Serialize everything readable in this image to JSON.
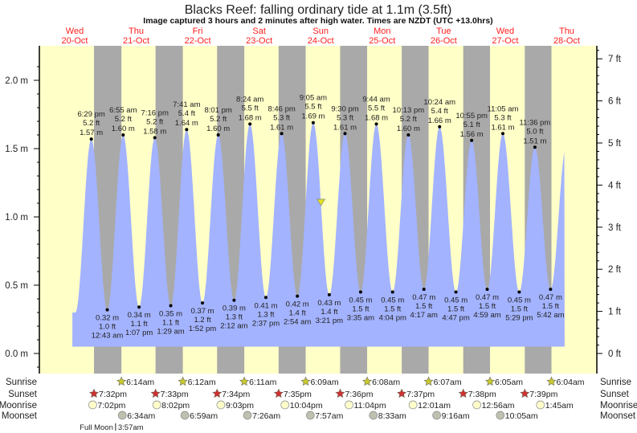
{
  "title": "Blacks Reef: falling  ordinary tide at 1.1m (3.5ft)",
  "subtitle": "Image captured 3 hours and 2 minutes after high water. Times are NZDT (UTC +13.0hrs)",
  "colors": {
    "day": "#ffffc8",
    "night": "#a9a9a9",
    "water": "#a3b3ff",
    "day_label": "#ff2020",
    "sunrise_icon": "#c8c832",
    "sunset_icon": "#d03030",
    "moonrise_icon": "#ffffcc",
    "moonset_icon": "#c0c0b0",
    "current_marker": "#e0e020"
  },
  "chart_data": {
    "type": "area",
    "title": "Blacks Reef: falling  ordinary tide at 1.1m (3.5ft)",
    "ylabel_left_unit": "m",
    "ylabel_right_unit": "ft",
    "ylim_m": [
      -0.05,
      2.25
    ],
    "left_ticks": [
      "0.0 m",
      "0.5 m",
      "1.0 m",
      "1.5 m",
      "2.0 m"
    ],
    "left_tick_values": [
      0.0,
      0.5,
      1.0,
      1.5,
      2.0
    ],
    "right_ticks": [
      "0 ft",
      "1 ft",
      "2 ft",
      "3 ft",
      "4 ft",
      "5 ft",
      "6 ft",
      "7 ft"
    ],
    "right_tick_values": [
      0,
      1,
      2,
      3,
      4,
      5,
      6,
      7
    ],
    "days": [
      {
        "weekday": "Wed",
        "date": "20-Oct"
      },
      {
        "weekday": "Thu",
        "date": "21-Oct"
      },
      {
        "weekday": "Fri",
        "date": "22-Oct"
      },
      {
        "weekday": "Sat",
        "date": "23-Oct"
      },
      {
        "weekday": "Sun",
        "date": "24-Oct"
      },
      {
        "weekday": "Mon",
        "date": "25-Oct"
      },
      {
        "weekday": "Tue",
        "date": "26-Oct"
      },
      {
        "weekday": "Wed",
        "date": "27-Oct"
      },
      {
        "weekday": "Thu",
        "date": "28-Oct"
      }
    ],
    "extremes": [
      {
        "type": "high",
        "day": 20,
        "time": "6:29 pm",
        "m": "1.57 m",
        "ft": "5.2 ft",
        "value": 1.57
      },
      {
        "type": "low",
        "day": 21,
        "time": "12:43 am",
        "m": "0.32 m",
        "ft": "1.0 ft",
        "value": 0.32
      },
      {
        "type": "high",
        "day": 21,
        "time": "6:55 am",
        "m": "1.60 m",
        "ft": "5.2 ft",
        "value": 1.6
      },
      {
        "type": "low",
        "day": 21,
        "time": "1:07 pm",
        "m": "0.34 m",
        "ft": "1.1 ft",
        "value": 0.34
      },
      {
        "type": "high",
        "day": 21,
        "time": "7:16 pm",
        "m": "1.58 m",
        "ft": "5.2 ft",
        "value": 1.58
      },
      {
        "type": "low",
        "day": 22,
        "time": "1:29 am",
        "m": "0.35 m",
        "ft": "1.1 ft",
        "value": 0.35
      },
      {
        "type": "high",
        "day": 22,
        "time": "7:41 am",
        "m": "1.64 m",
        "ft": "5.4 ft",
        "value": 1.64
      },
      {
        "type": "low",
        "day": 22,
        "time": "1:52 pm",
        "m": "0.37 m",
        "ft": "1.2 ft",
        "value": 0.37
      },
      {
        "type": "high",
        "day": 22,
        "time": "8:01 pm",
        "m": "1.60 m",
        "ft": "5.2 ft",
        "value": 1.6
      },
      {
        "type": "low",
        "day": 23,
        "time": "2:12 am",
        "m": "0.39 m",
        "ft": "1.3 ft",
        "value": 0.39
      },
      {
        "type": "high",
        "day": 23,
        "time": "8:24 am",
        "m": "1.68 m",
        "ft": "5.5 ft",
        "value": 1.68
      },
      {
        "type": "low",
        "day": 23,
        "time": "2:37 pm",
        "m": "0.41 m",
        "ft": "1.3 ft",
        "value": 0.41
      },
      {
        "type": "high",
        "day": 23,
        "time": "8:46 pm",
        "m": "1.61 m",
        "ft": "5.3 ft",
        "value": 1.61
      },
      {
        "type": "low",
        "day": 24,
        "time": "2:54 am",
        "m": "0.42 m",
        "ft": "1.4 ft",
        "value": 0.42
      },
      {
        "type": "high",
        "day": 24,
        "time": "9:05 am",
        "m": "1.69 m",
        "ft": "5.5 ft",
        "value": 1.69
      },
      {
        "type": "low",
        "day": 24,
        "time": "3:21 pm",
        "m": "0.43 m",
        "ft": "1.4 ft",
        "value": 0.43
      },
      {
        "type": "high",
        "day": 24,
        "time": "9:30 pm",
        "m": "1.61 m",
        "ft": "5.3 ft",
        "value": 1.61
      },
      {
        "type": "low",
        "day": 25,
        "time": "3:35 am",
        "m": "0.45 m",
        "ft": "1.5 ft",
        "value": 0.45
      },
      {
        "type": "high",
        "day": 25,
        "time": "9:44 am",
        "m": "1.68 m",
        "ft": "5.5 ft",
        "value": 1.68
      },
      {
        "type": "low",
        "day": 25,
        "time": "4:04 pm",
        "m": "0.45 m",
        "ft": "1.5 ft",
        "value": 0.45
      },
      {
        "type": "high",
        "day": 25,
        "time": "10:13 pm",
        "m": "1.60 m",
        "ft": "5.2 ft",
        "value": 1.6
      },
      {
        "type": "low",
        "day": 26,
        "time": "4:17 am",
        "m": "0.47 m",
        "ft": "1.5 ft",
        "value": 0.47
      },
      {
        "type": "high",
        "day": 26,
        "time": "10:24 am",
        "m": "1.66 m",
        "ft": "5.4 ft",
        "value": 1.66
      },
      {
        "type": "low",
        "day": 26,
        "time": "4:47 pm",
        "m": "0.45 m",
        "ft": "1.5 ft",
        "value": 0.45
      },
      {
        "type": "high",
        "day": 26,
        "time": "10:55 pm",
        "m": "1.56 m",
        "ft": "5.1 ft",
        "value": 1.56
      },
      {
        "type": "low",
        "day": 27,
        "time": "4:59 am",
        "m": "0.47 m",
        "ft": "1.5 ft",
        "value": 0.47
      },
      {
        "type": "high",
        "day": 27,
        "time": "11:05 am",
        "m": "1.61 m",
        "ft": "5.3 ft",
        "value": 1.61
      },
      {
        "type": "low",
        "day": 27,
        "time": "5:29 pm",
        "m": "0.45 m",
        "ft": "1.5 ft",
        "value": 0.45
      },
      {
        "type": "high",
        "day": 27,
        "time": "11:36 pm",
        "m": "1.51 m",
        "ft": "5.0 ft",
        "value": 1.51
      },
      {
        "type": "low",
        "day": 28,
        "time": "5:42 am",
        "m": "0.47 m",
        "ft": "1.5 ft",
        "value": 0.47
      }
    ],
    "current": {
      "day": 24,
      "time": "12:07 pm",
      "value": 1.1
    },
    "grid": false,
    "legend": "none"
  },
  "astro": {
    "row_labels": {
      "sunrise": "Sunrise",
      "sunset": "Sunset",
      "moonrise": "Moonrise",
      "moonset": "Moonset"
    },
    "sunrise": [
      {
        "day": 21,
        "time": "6:14am"
      },
      {
        "day": 22,
        "time": "6:12am"
      },
      {
        "day": 23,
        "time": "6:11am"
      },
      {
        "day": 24,
        "time": "6:09am"
      },
      {
        "day": 25,
        "time": "6:08am"
      },
      {
        "day": 26,
        "time": "6:07am"
      },
      {
        "day": 27,
        "time": "6:05am"
      },
      {
        "day": 28,
        "time": "6:04am"
      }
    ],
    "sunset": [
      {
        "day": 20,
        "time": "7:32pm"
      },
      {
        "day": 21,
        "time": "7:33pm"
      },
      {
        "day": 22,
        "time": "7:34pm"
      },
      {
        "day": 23,
        "time": "7:35pm"
      },
      {
        "day": 24,
        "time": "7:36pm"
      },
      {
        "day": 25,
        "time": "7:37pm"
      },
      {
        "day": 26,
        "time": "7:38pm"
      },
      {
        "day": 27,
        "time": "7:39pm"
      }
    ],
    "moonrise": [
      {
        "day": 20,
        "time": "7:02pm"
      },
      {
        "day": 21,
        "time": "8:02pm"
      },
      {
        "day": 22,
        "time": "9:03pm"
      },
      {
        "day": 23,
        "time": "10:04pm"
      },
      {
        "day": 24,
        "time": "11:04pm"
      },
      {
        "day": 26,
        "time": "12:01am"
      },
      {
        "day": 27,
        "time": "12:56am"
      },
      {
        "day": 28,
        "time": "1:45am"
      }
    ],
    "moonset": [
      {
        "day": 21,
        "time": "6:34am"
      },
      {
        "day": 22,
        "time": "6:59am"
      },
      {
        "day": 23,
        "time": "7:26am"
      },
      {
        "day": 24,
        "time": "7:57am"
      },
      {
        "day": 25,
        "time": "8:33am"
      },
      {
        "day": 26,
        "time": "9:16am"
      },
      {
        "day": 27,
        "time": "10:05am"
      }
    ],
    "phase": {
      "label": "Full Moon",
      "day": 21,
      "time": "3:57am"
    }
  }
}
